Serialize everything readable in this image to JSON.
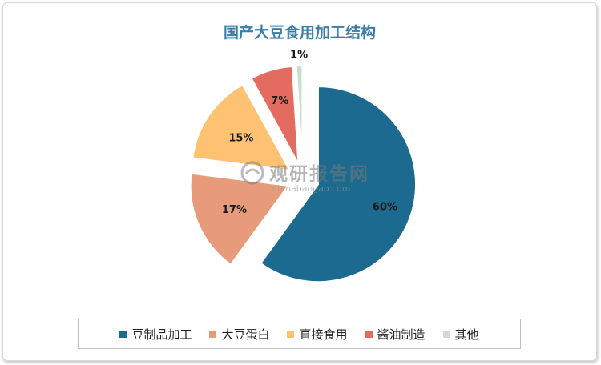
{
  "chart_data": {
    "type": "pie",
    "title": "国产大豆食用加工结构",
    "categories": [
      "豆制品加工",
      "大豆蛋白",
      "直接食用",
      "酱油制造",
      "其他"
    ],
    "values": [
      60,
      17,
      15,
      7,
      1
    ],
    "labels": [
      "60%",
      "17%",
      "15%",
      "7%",
      "1%"
    ],
    "colors": [
      "#1c6a8f",
      "#e89b7b",
      "#ffc272",
      "#e36b5f",
      "#c9ddd0"
    ],
    "legend": "bottom"
  },
  "watermark": {
    "name": "观研报告网",
    "site": "chinabaogao.com"
  }
}
